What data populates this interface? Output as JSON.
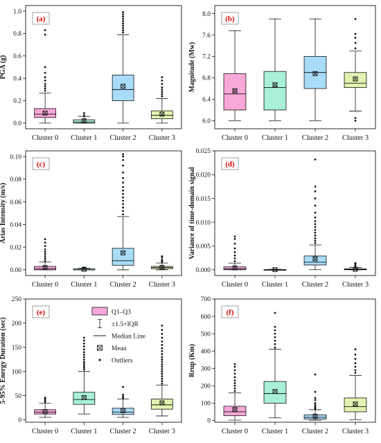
{
  "chart_data": [
    {
      "type": "box",
      "panel_label": "(a)",
      "ylabel": "PGA (g)",
      "ylim": [
        -0.05,
        1.05
      ],
      "yticks": [
        0.0,
        0.2,
        0.4,
        0.6,
        0.8,
        1.0
      ],
      "ytick_labels": [
        "0.0",
        "0.2",
        "0.4",
        "0.6",
        "0.8",
        "1.0"
      ],
      "categories": [
        "Cluster 0",
        "Cluster 1",
        "Cluster 2",
        "Cluster 3"
      ],
      "colors": [
        "#f7a8d8",
        "#a8f0d8",
        "#a8dcf8",
        "#e2f2b0"
      ],
      "boxes": [
        {
          "q1": 0.05,
          "median": 0.08,
          "q3": 0.13,
          "mean": 0.09,
          "whisker_low": 0.0,
          "whisker_high": 0.27,
          "outliers": [
            0.29,
            0.31,
            0.33,
            0.35,
            0.38,
            0.41,
            0.45,
            0.5,
            0.79,
            0.83
          ]
        },
        {
          "q1": 0.0,
          "median": 0.01,
          "q3": 0.03,
          "mean": 0.02,
          "whisker_low": 0.0,
          "whisker_high": 0.06,
          "outliers": [
            0.07,
            0.09
          ]
        },
        {
          "q1": 0.2,
          "median": 0.3,
          "q3": 0.43,
          "mean": 0.33,
          "whisker_low": 0.0,
          "whisker_high": 0.79,
          "outliers": [
            0.81,
            0.83,
            0.85,
            0.87,
            0.89,
            0.91,
            0.93,
            0.95,
            0.97,
            0.99
          ]
        },
        {
          "q1": 0.04,
          "median": 0.07,
          "q3": 0.11,
          "mean": 0.08,
          "whisker_low": 0.0,
          "whisker_high": 0.22,
          "outliers": [
            0.24,
            0.26,
            0.28,
            0.3,
            0.32,
            0.35,
            0.38,
            0.41
          ]
        }
      ]
    },
    {
      "type": "box",
      "panel_label": "(b)",
      "ylabel": "Magnitude (Mw)",
      "ylim": [
        5.85,
        8.15
      ],
      "yticks": [
        6.0,
        6.4,
        6.8,
        7.2,
        7.6,
        8.0
      ],
      "ytick_labels": [
        "6.0",
        "6.4",
        "6.8",
        "7.2",
        "7.6",
        "8.0"
      ],
      "categories": [
        "Cluster 0",
        "Cluster 1",
        "Cluster 2",
        "Cluster 3"
      ],
      "colors": [
        "#f7a8d8",
        "#a8f0d8",
        "#a8dcf8",
        "#e2f2b0"
      ],
      "boxes": [
        {
          "q1": 6.2,
          "median": 6.5,
          "q3": 6.88,
          "mean": 6.56,
          "whisker_low": 6.0,
          "whisker_high": 7.68,
          "outliers": []
        },
        {
          "q1": 6.2,
          "median": 6.62,
          "q3": 6.92,
          "mean": 6.67,
          "whisker_low": 6.0,
          "whisker_high": 7.9,
          "outliers": []
        },
        {
          "q1": 6.6,
          "median": 6.9,
          "q3": 7.2,
          "mean": 6.88,
          "whisker_low": 6.0,
          "whisker_high": 7.9,
          "outliers": []
        },
        {
          "q1": 6.62,
          "median": 6.7,
          "q3": 6.9,
          "mean": 6.78,
          "whisker_low": 6.18,
          "whisker_high": 7.3,
          "outliers": [
            6.0,
            6.05,
            7.35,
            7.45,
            7.55,
            7.62,
            7.9
          ]
        }
      ]
    },
    {
      "type": "box",
      "panel_label": "(c)",
      "ylabel": "Arias Intensity (m/s)",
      "ylim": [
        -0.005,
        0.105
      ],
      "yticks": [
        0.0,
        0.02,
        0.04,
        0.06,
        0.08,
        0.1
      ],
      "ytick_labels": [
        "0.00",
        "0.02",
        "0.04",
        "0.06",
        "0.08",
        "0.10"
      ],
      "categories": [
        "Cluster 0",
        "Cluster 1",
        "Cluster 2",
        "Cluster 3"
      ],
      "colors": [
        "#f7a8d8",
        "#a8f0d8",
        "#a8dcf8",
        "#e2f2b0"
      ],
      "boxes": [
        {
          "q1": 0.0,
          "median": 0.001,
          "q3": 0.003,
          "mean": 0.002,
          "whisker_low": 0.0,
          "whisker_high": 0.007,
          "outliers": [
            0.008,
            0.01,
            0.012,
            0.014,
            0.016,
            0.018,
            0.021,
            0.024,
            0.027
          ]
        },
        {
          "q1": 0.0,
          "median": 0.0,
          "q3": 0.001,
          "mean": 0.0005,
          "whisker_low": 0.0,
          "whisker_high": 0.0015,
          "outliers": [
            0.002
          ]
        },
        {
          "q1": 0.004,
          "median": 0.008,
          "q3": 0.019,
          "mean": 0.015,
          "whisker_low": 0.0,
          "whisker_high": 0.047,
          "outliers": [
            0.049,
            0.052,
            0.055,
            0.058,
            0.061,
            0.064,
            0.067,
            0.07,
            0.073,
            0.077,
            0.081,
            0.086,
            0.092,
            0.097,
            0.1,
            0.102
          ]
        },
        {
          "q1": 0.001,
          "median": 0.002,
          "q3": 0.003,
          "mean": 0.002,
          "whisker_low": 0.0,
          "whisker_high": 0.006,
          "outliers": [
            0.007,
            0.008,
            0.009,
            0.011,
            0.012
          ]
        }
      ]
    },
    {
      "type": "box",
      "panel_label": "(d)",
      "ylabel": "Variance of time-domain signal",
      "ylim": [
        -0.0012,
        0.025
      ],
      "yticks": [
        0.0,
        0.005,
        0.01,
        0.015,
        0.02,
        0.025
      ],
      "ytick_labels": [
        "0.000",
        "0.005",
        "0.010",
        "0.015",
        "0.020",
        "0.025"
      ],
      "categories": [
        "Cluster 0",
        "Cluster 1",
        "Cluster 2",
        "Cluster 3"
      ],
      "colors": [
        "#f7a8d8",
        "#a8f0d8",
        "#a8dcf8",
        "#e2f2b0"
      ],
      "boxes": [
        {
          "q1": 0.0,
          "median": 0.0002,
          "q3": 0.0006,
          "mean": 0.0004,
          "whisker_low": 0.0,
          "whisker_high": 0.0014,
          "outliers": [
            0.0018,
            0.0024,
            0.003,
            0.0037,
            0.0045,
            0.0055,
            0.0065,
            0.007
          ]
        },
        {
          "q1": 0.0,
          "median": 0.0,
          "q3": 5e-05,
          "mean": 2e-05,
          "whisker_low": 0.0,
          "whisker_high": 0.0001,
          "outliers": []
        },
        {
          "q1": 0.001,
          "median": 0.0016,
          "q3": 0.0029,
          "mean": 0.0023,
          "whisker_low": 0.0,
          "whisker_high": 0.0052,
          "outliers": [
            0.0056,
            0.0061,
            0.0066,
            0.0072,
            0.0078,
            0.0084,
            0.009,
            0.0096,
            0.0102,
            0.011,
            0.012,
            0.0135,
            0.015,
            0.0165,
            0.0175,
            0.0232
          ]
        },
        {
          "q1": 0.0,
          "median": 0.0001,
          "q3": 0.0002,
          "mean": 0.0001,
          "whisker_low": 0.0,
          "whisker_high": 0.0005,
          "outliers": [
            0.0007,
            0.0009,
            0.0012,
            0.0014
          ]
        }
      ]
    },
    {
      "type": "box",
      "panel_label": "(e)",
      "ylabel": "5-95% Energy Duration (sec)",
      "ylim": [
        -5,
        250
      ],
      "yticks": [
        0,
        50,
        100,
        150,
        200,
        250
      ],
      "ytick_labels": [
        "0",
        "50",
        "100",
        "150",
        "200",
        "250"
      ],
      "categories": [
        "Cluster 0",
        "Cluster 1",
        "Cluster 2",
        "Cluster 3"
      ],
      "colors": [
        "#f7a8d8",
        "#a8f0d8",
        "#a8dcf8",
        "#e2f2b0"
      ],
      "boxes": [
        {
          "q1": 12,
          "median": 16,
          "q3": 21,
          "mean": 17,
          "whisker_low": 5,
          "whisker_high": 34,
          "outliers": [
            37,
            40,
            43,
            46
          ]
        },
        {
          "q1": 32,
          "median": 42,
          "q3": 57,
          "mean": 46,
          "whisker_low": 12,
          "whisker_high": 100,
          "outliers": [
            104,
            108,
            112,
            116,
            120,
            125,
            130,
            135,
            140,
            146,
            152,
            158,
            164,
            170
          ]
        },
        {
          "q1": 11,
          "median": 16,
          "q3": 24,
          "mean": 19,
          "whisker_low": 5,
          "whisker_high": 43,
          "outliers": [
            45,
            48,
            52,
            68
          ]
        },
        {
          "q1": 22,
          "median": 31,
          "q3": 43,
          "mean": 35,
          "whisker_low": 8,
          "whisker_high": 72,
          "outliers": [
            75,
            80,
            85,
            90,
            95,
            100,
            105,
            110,
            115,
            120,
            125,
            130,
            136,
            142,
            148,
            155,
            162,
            170,
            178,
            186,
            195
          ]
        }
      ],
      "legend": {
        "position": "top-center",
        "items": [
          {
            "symbol": "box",
            "label": "Q1–Q3"
          },
          {
            "symbol": "whisker",
            "label": "±1.5×IQR"
          },
          {
            "symbol": "line",
            "label": "Median Line"
          },
          {
            "symbol": "mean",
            "label": "Mean"
          },
          {
            "symbol": "dot",
            "label": "Outliers"
          }
        ]
      }
    },
    {
      "type": "box",
      "panel_label": "(f)",
      "ylabel": "Rrup (Km)",
      "ylim": [
        -10,
        700
      ],
      "yticks": [
        0,
        100,
        200,
        300,
        400,
        500,
        600,
        700
      ],
      "ytick_labels": [
        "0",
        "100",
        "200",
        "300",
        "400",
        "500",
        "600",
        "700"
      ],
      "categories": [
        "Cluster 0",
        "Cluster 1",
        "Cluster 2",
        "Cluster 3"
      ],
      "colors": [
        "#f7a8d8",
        "#a8f0d8",
        "#a8dcf8",
        "#e2f2b0"
      ],
      "boxes": [
        {
          "q1": 28,
          "median": 50,
          "q3": 82,
          "mean": 63,
          "whisker_low": 2,
          "whisker_high": 160,
          "outliers": [
            170,
            185,
            200,
            215,
            230,
            250,
            270,
            290,
            310,
            325
          ]
        },
        {
          "q1": 100,
          "median": 155,
          "q3": 225,
          "mean": 167,
          "whisker_low": 15,
          "whisker_high": 410,
          "outliers": [
            420,
            440,
            460,
            480,
            500,
            520,
            540,
            620
          ]
        },
        {
          "q1": 8,
          "median": 18,
          "q3": 33,
          "mean": 25,
          "whisker_low": 1,
          "whisker_high": 62,
          "outliers": [
            67,
            73,
            80,
            90,
            100,
            118,
            130,
            165,
            265
          ]
        },
        {
          "q1": 50,
          "median": 80,
          "q3": 130,
          "mean": 95,
          "whisker_low": 5,
          "whisker_high": 260,
          "outliers": [
            275,
            290,
            310,
            330,
            355,
            380,
            410
          ]
        }
      ]
    }
  ]
}
